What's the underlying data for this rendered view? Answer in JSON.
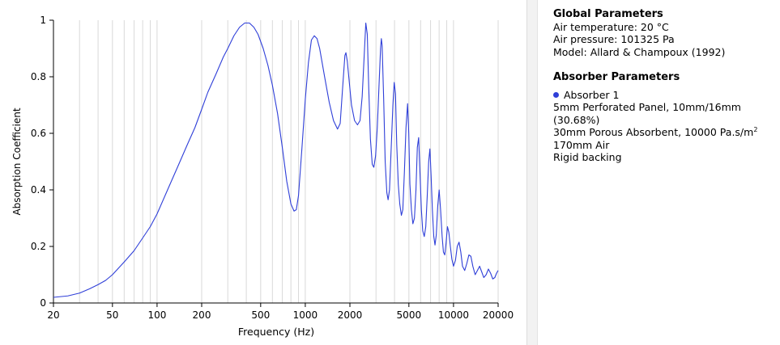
{
  "chart_data": {
    "type": "line",
    "xlabel": "Frequency (Hz)",
    "ylabel": "Absorption Coefficient",
    "x_scale": "log",
    "xlim": [
      20,
      20000
    ],
    "ylim": [
      0,
      1
    ],
    "x_ticks": [
      20,
      50,
      100,
      200,
      500,
      1000,
      2000,
      5000,
      10000,
      20000
    ],
    "x_tick_labels": [
      "20",
      "50",
      "100",
      "200",
      "500",
      "1000",
      "2000",
      "5000",
      "10000",
      "20000"
    ],
    "y_ticks": [
      0,
      0.2,
      0.4,
      0.6,
      0.8,
      1
    ],
    "y_tick_labels": [
      "0",
      "0.2",
      "0.4",
      "0.6",
      "0.8",
      "1"
    ],
    "grid": "vertical",
    "series": [
      {
        "name": "Absorber 1",
        "color": "#2f3fd8",
        "points": [
          [
            20,
            0.02
          ],
          [
            25,
            0.025
          ],
          [
            30,
            0.035
          ],
          [
            35,
            0.05
          ],
          [
            40,
            0.065
          ],
          [
            45,
            0.08
          ],
          [
            50,
            0.1
          ],
          [
            60,
            0.145
          ],
          [
            70,
            0.185
          ],
          [
            80,
            0.23
          ],
          [
            90,
            0.27
          ],
          [
            100,
            0.315
          ],
          [
            120,
            0.41
          ],
          [
            140,
            0.49
          ],
          [
            160,
            0.56
          ],
          [
            180,
            0.62
          ],
          [
            200,
            0.685
          ],
          [
            220,
            0.745
          ],
          [
            250,
            0.81
          ],
          [
            280,
            0.87
          ],
          [
            300,
            0.9
          ],
          [
            330,
            0.945
          ],
          [
            360,
            0.975
          ],
          [
            390,
            0.99
          ],
          [
            420,
            0.99
          ],
          [
            450,
            0.975
          ],
          [
            480,
            0.95
          ],
          [
            520,
            0.9
          ],
          [
            560,
            0.84
          ],
          [
            600,
            0.77
          ],
          [
            650,
            0.67
          ],
          [
            700,
            0.55
          ],
          [
            750,
            0.43
          ],
          [
            800,
            0.35
          ],
          [
            840,
            0.325
          ],
          [
            870,
            0.33
          ],
          [
            900,
            0.38
          ],
          [
            950,
            0.55
          ],
          [
            1000,
            0.72
          ],
          [
            1050,
            0.85
          ],
          [
            1100,
            0.93
          ],
          [
            1150,
            0.945
          ],
          [
            1200,
            0.935
          ],
          [
            1250,
            0.9
          ],
          [
            1350,
            0.8
          ],
          [
            1450,
            0.71
          ],
          [
            1550,
            0.645
          ],
          [
            1650,
            0.615
          ],
          [
            1720,
            0.635
          ],
          [
            1780,
            0.75
          ],
          [
            1850,
            0.875
          ],
          [
            1880,
            0.885
          ],
          [
            1920,
            0.855
          ],
          [
            1990,
            0.77
          ],
          [
            2050,
            0.7
          ],
          [
            2150,
            0.645
          ],
          [
            2250,
            0.63
          ],
          [
            2340,
            0.645
          ],
          [
            2420,
            0.73
          ],
          [
            2500,
            0.88
          ],
          [
            2560,
            0.99
          ],
          [
            2620,
            0.95
          ],
          [
            2680,
            0.76
          ],
          [
            2750,
            0.58
          ],
          [
            2830,
            0.49
          ],
          [
            2900,
            0.48
          ],
          [
            2980,
            0.52
          ],
          [
            3060,
            0.62
          ],
          [
            3150,
            0.78
          ],
          [
            3220,
            0.9
          ],
          [
            3260,
            0.935
          ],
          [
            3300,
            0.91
          ],
          [
            3380,
            0.72
          ],
          [
            3460,
            0.5
          ],
          [
            3550,
            0.39
          ],
          [
            3620,
            0.365
          ],
          [
            3700,
            0.4
          ],
          [
            3800,
            0.55
          ],
          [
            3900,
            0.7
          ],
          [
            3980,
            0.78
          ],
          [
            4060,
            0.74
          ],
          [
            4140,
            0.56
          ],
          [
            4240,
            0.42
          ],
          [
            4340,
            0.35
          ],
          [
            4450,
            0.31
          ],
          [
            4550,
            0.33
          ],
          [
            4660,
            0.46
          ],
          [
            4780,
            0.62
          ],
          [
            4900,
            0.705
          ],
          [
            4990,
            0.6
          ],
          [
            5080,
            0.42
          ],
          [
            5200,
            0.33
          ],
          [
            5320,
            0.28
          ],
          [
            5450,
            0.3
          ],
          [
            5580,
            0.4
          ],
          [
            5700,
            0.55
          ],
          [
            5820,
            0.585
          ],
          [
            5940,
            0.46
          ],
          [
            6070,
            0.33
          ],
          [
            6200,
            0.255
          ],
          [
            6350,
            0.235
          ],
          [
            6500,
            0.27
          ],
          [
            6650,
            0.38
          ],
          [
            6800,
            0.5
          ],
          [
            6930,
            0.545
          ],
          [
            7060,
            0.45
          ],
          [
            7200,
            0.33
          ],
          [
            7360,
            0.235
          ],
          [
            7500,
            0.205
          ],
          [
            7650,
            0.24
          ],
          [
            7820,
            0.34
          ],
          [
            8000,
            0.4
          ],
          [
            8180,
            0.33
          ],
          [
            8380,
            0.235
          ],
          [
            8550,
            0.18
          ],
          [
            8730,
            0.17
          ],
          [
            8900,
            0.21
          ],
          [
            9100,
            0.27
          ],
          [
            9300,
            0.25
          ],
          [
            9520,
            0.2
          ],
          [
            9750,
            0.155
          ],
          [
            10000,
            0.13
          ],
          [
            10300,
            0.15
          ],
          [
            10600,
            0.2
          ],
          [
            10900,
            0.215
          ],
          [
            11200,
            0.18
          ],
          [
            11500,
            0.13
          ],
          [
            11900,
            0.115
          ],
          [
            12300,
            0.14
          ],
          [
            12700,
            0.17
          ],
          [
            13100,
            0.165
          ],
          [
            13500,
            0.13
          ],
          [
            14000,
            0.1
          ],
          [
            14500,
            0.115
          ],
          [
            15000,
            0.13
          ],
          [
            15500,
            0.11
          ],
          [
            16000,
            0.09
          ],
          [
            16600,
            0.1
          ],
          [
            17200,
            0.12
          ],
          [
            17800,
            0.105
          ],
          [
            18400,
            0.085
          ],
          [
            19000,
            0.09
          ],
          [
            19500,
            0.105
          ],
          [
            20000,
            0.115
          ]
        ]
      }
    ]
  },
  "panel": {
    "global_title": "Global Parameters",
    "air_temperature": "Air temperature: 20 °C",
    "air_pressure": "Air pressure: 101325 Pa",
    "model": "Model: Allard & Champoux (1992)",
    "absorber_title": "Absorber Parameters",
    "absorber_name": "Absorber 1",
    "layer1_a": "5mm Perforated Panel, 10mm/16mm",
    "layer1_b": "(30.68%)",
    "layer2": "30mm Porous Absorbent, 10000 Pa.s/m",
    "layer2_sup": "2",
    "layer3": "170mm Air",
    "layer4": "Rigid backing",
    "dot_color": "#2f3fd8"
  }
}
